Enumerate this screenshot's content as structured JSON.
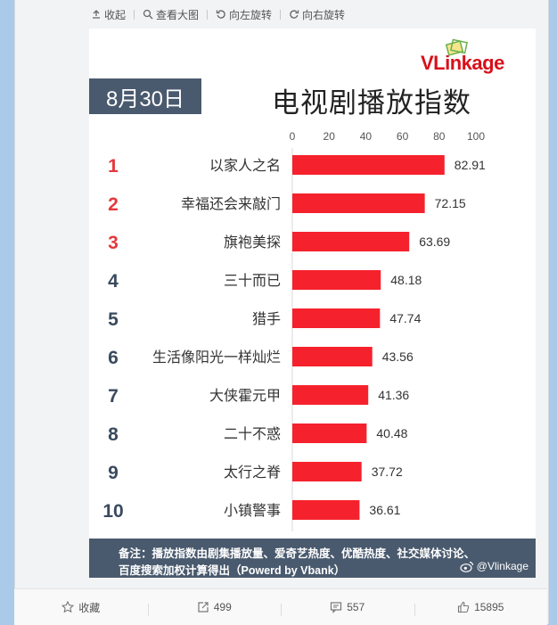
{
  "toolbar": {
    "collapse": "收起",
    "view_large": "查看大图",
    "rotate_left": "向左旋转",
    "rotate_right": "向右旋转"
  },
  "card": {
    "logo": "VLinkage",
    "date": "8月30日",
    "title": "电视剧播放指数",
    "footer_line1": "备注：播放指数由剧集播放量、爱奇艺热度、优酷热度、社交媒体讨论、",
    "footer_line2": "百度搜索加权计算得出（Powerd by Vbank）",
    "watermark": "@Vlinkage"
  },
  "chart_data": {
    "type": "bar",
    "orientation": "horizontal",
    "ranks": [
      "1",
      "2",
      "3",
      "4",
      "5",
      "6",
      "7",
      "8",
      "9",
      "10"
    ],
    "categories": [
      "以家人之名",
      "幸福还会来敲门",
      "旗袍美探",
      "三十而已",
      "猎手",
      "生活像阳光一样灿烂",
      "大侠霍元甲",
      "二十不惑",
      "太行之脊",
      "小镇警事"
    ],
    "values": [
      82.91,
      72.15,
      63.69,
      48.18,
      47.74,
      43.56,
      41.36,
      40.48,
      37.72,
      36.61
    ],
    "value_labels": [
      "82.91",
      "72.15",
      "63.69",
      "48.18",
      "47.74",
      "43.56",
      "41.36",
      "40.48",
      "37.72",
      "36.61"
    ],
    "x_ticks": [
      "0",
      "20",
      "40",
      "60",
      "80",
      "100"
    ],
    "xlim": [
      0,
      100
    ],
    "bar_color": "#f5222d",
    "top_rank_color": "#e4393c",
    "rank_color": "#3a4a5e",
    "grid": false
  },
  "actions": {
    "favorite": "收藏",
    "repost": "499",
    "comment": "557",
    "like": "15895"
  }
}
